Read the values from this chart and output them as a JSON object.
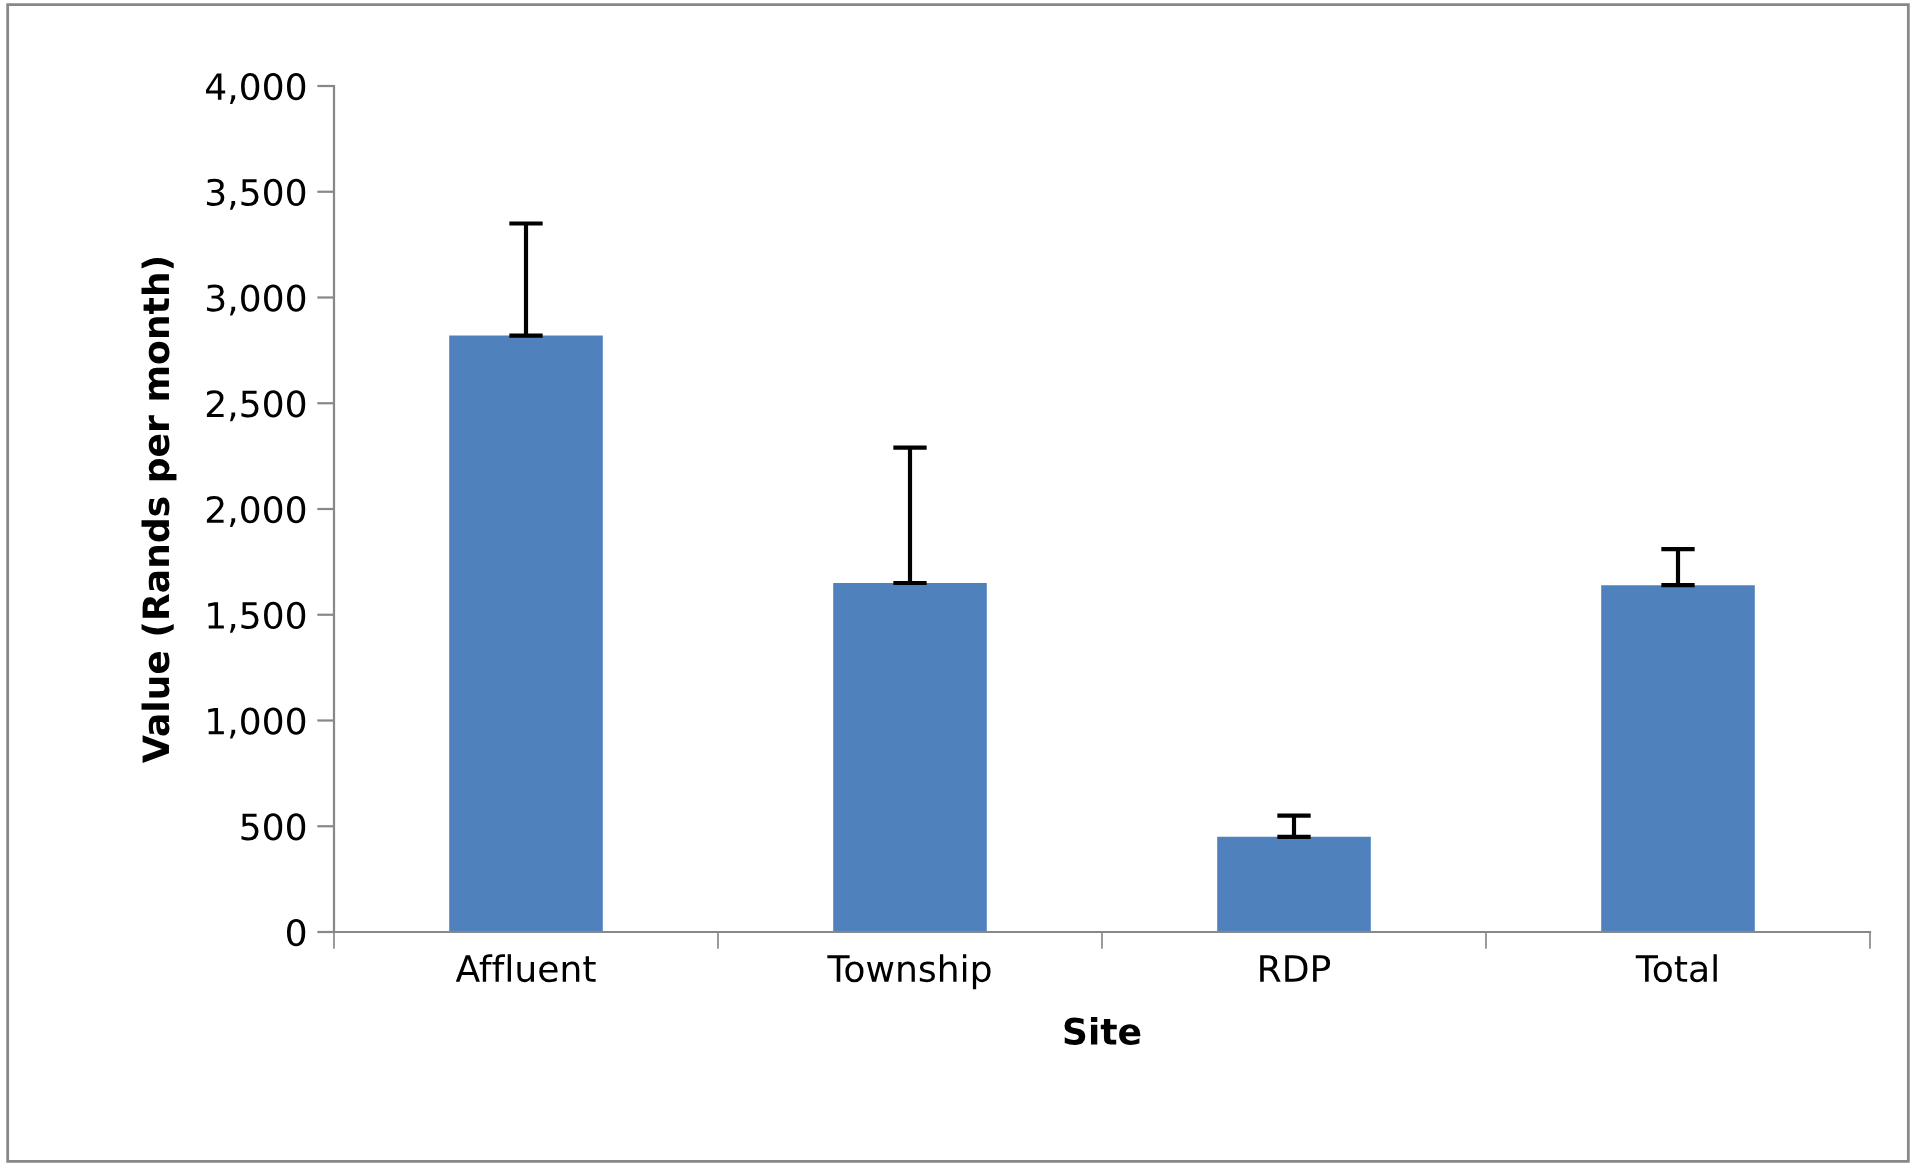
{
  "chart_data": {
    "type": "bar",
    "xlabel": "Site",
    "ylabel": "Value (Rands per month)",
    "categories": [
      "Affluent",
      "Township",
      "RDP",
      "Total"
    ],
    "values": [
      2820,
      1650,
      450,
      1640
    ],
    "errors": [
      [
        2820,
        3350
      ],
      [
        1650,
        2290
      ],
      [
        450,
        550
      ],
      [
        1640,
        1810
      ]
    ],
    "color": "#4f81bd",
    "ylim": [
      0,
      4000
    ],
    "yticks": [
      {
        "value": 0,
        "label": "0"
      },
      {
        "value": 500,
        "label": "500"
      },
      {
        "value": 1000,
        "label": "1,000"
      },
      {
        "value": 1500,
        "label": "1,500"
      },
      {
        "value": 2000,
        "label": "2,000"
      },
      {
        "value": 2500,
        "label": "2,500"
      },
      {
        "value": 3000,
        "label": "3,000"
      },
      {
        "value": 3500,
        "label": "3,500"
      },
      {
        "value": 4000,
        "label": "4,000"
      }
    ],
    "grid": false,
    "legend": false
  }
}
